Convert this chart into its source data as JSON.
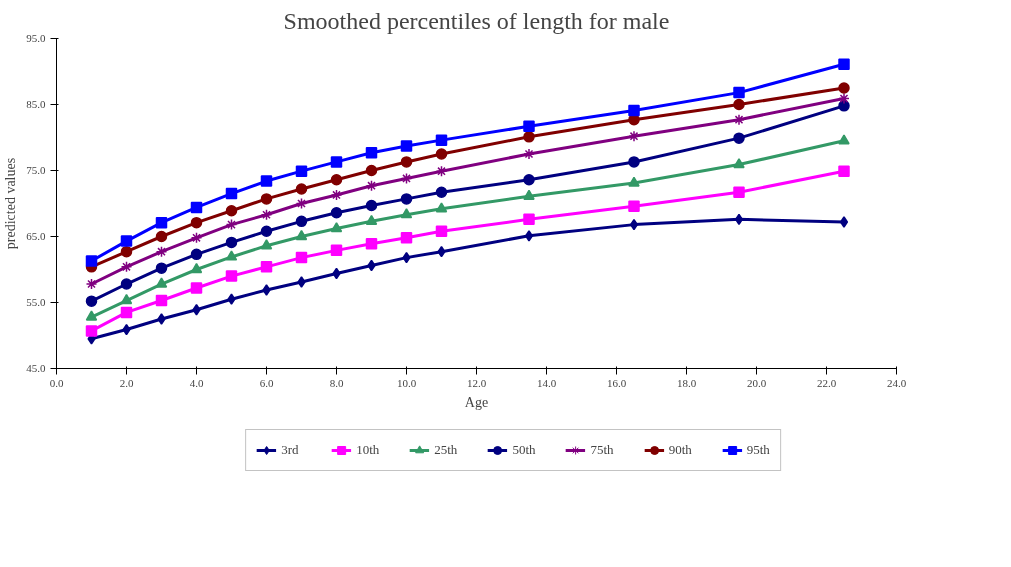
{
  "chart_data": {
    "type": "line",
    "title": "Smoothed percentiles of length for male",
    "xlabel": "Age",
    "ylabel": "predicted values",
    "x": [
      1,
      2,
      3,
      4,
      5,
      6,
      7,
      8,
      9,
      10,
      11,
      13.5,
      16.5,
      19.5,
      22.5
    ],
    "xlim": [
      0,
      24
    ],
    "xticks": [
      {
        "value": 0,
        "label": "0.0"
      },
      {
        "value": 2,
        "label": "2.0"
      },
      {
        "value": 4,
        "label": "4.0"
      },
      {
        "value": 6,
        "label": "6.0"
      },
      {
        "value": 8,
        "label": "8.0"
      },
      {
        "value": 10,
        "label": "10.0"
      },
      {
        "value": 12,
        "label": "12.0"
      },
      {
        "value": 14,
        "label": "14.0"
      },
      {
        "value": 16,
        "label": "16.0"
      },
      {
        "value": 18,
        "label": "18.0"
      },
      {
        "value": 20,
        "label": "20.0"
      },
      {
        "value": 22,
        "label": "22.0"
      },
      {
        "value": 24,
        "label": "24.0"
      }
    ],
    "ylim": [
      45,
      95
    ],
    "yticks": [
      {
        "value": 45,
        "label": "45.0"
      },
      {
        "value": 55,
        "label": "55.0"
      },
      {
        "value": 65,
        "label": "65.0"
      },
      {
        "value": 75,
        "label": "75.0"
      },
      {
        "value": 85,
        "label": "85.0"
      },
      {
        "value": 95,
        "label": "95.0"
      }
    ],
    "grid": false,
    "legend": "bottom",
    "line_style": "solid",
    "series": [
      {
        "name": "3rd",
        "color": "#000080",
        "marker": "diamond",
        "values": [
          49.5,
          50.9,
          52.5,
          53.9,
          55.5,
          56.9,
          58.1,
          59.4,
          60.6,
          61.8,
          62.7,
          65.1,
          66.8,
          67.6,
          67.2
        ]
      },
      {
        "name": "10th",
        "color": "#ff00ff",
        "marker": "square",
        "values": [
          50.7,
          53.5,
          55.3,
          57.2,
          59.0,
          60.4,
          61.8,
          62.9,
          63.9,
          64.8,
          65.8,
          67.6,
          69.6,
          71.7,
          74.9
        ]
      },
      {
        "name": "25th",
        "color": "#339966",
        "marker": "triangle",
        "values": [
          52.8,
          55.3,
          57.8,
          60.0,
          61.9,
          63.6,
          65.0,
          66.2,
          67.3,
          68.3,
          69.2,
          71.1,
          73.1,
          75.9,
          79.5
        ]
      },
      {
        "name": "50th",
        "color": "#000080",
        "marker": "circle",
        "values": [
          55.2,
          57.8,
          60.2,
          62.3,
          64.1,
          65.8,
          67.3,
          68.6,
          69.7,
          70.7,
          71.7,
          73.6,
          76.3,
          79.9,
          84.8
        ]
      },
      {
        "name": "75th",
        "color": "#800080",
        "marker": "cross",
        "values": [
          57.8,
          60.4,
          62.7,
          64.8,
          66.8,
          68.3,
          70.0,
          71.3,
          72.7,
          73.8,
          74.9,
          77.5,
          80.2,
          82.7,
          85.9
        ]
      },
      {
        "name": "90th",
        "color": "#800000",
        "marker": "circle",
        "values": [
          60.4,
          62.7,
          65.0,
          67.1,
          68.9,
          70.7,
          72.2,
          73.6,
          75.0,
          76.3,
          77.5,
          80.1,
          82.7,
          85.0,
          87.5
        ]
      },
      {
        "name": "95th",
        "color": "#0000ff",
        "marker": "square",
        "values": [
          61.3,
          64.3,
          67.1,
          69.4,
          71.5,
          73.4,
          74.9,
          76.3,
          77.7,
          78.7,
          79.6,
          81.7,
          84.1,
          86.8,
          91.1
        ]
      }
    ]
  }
}
